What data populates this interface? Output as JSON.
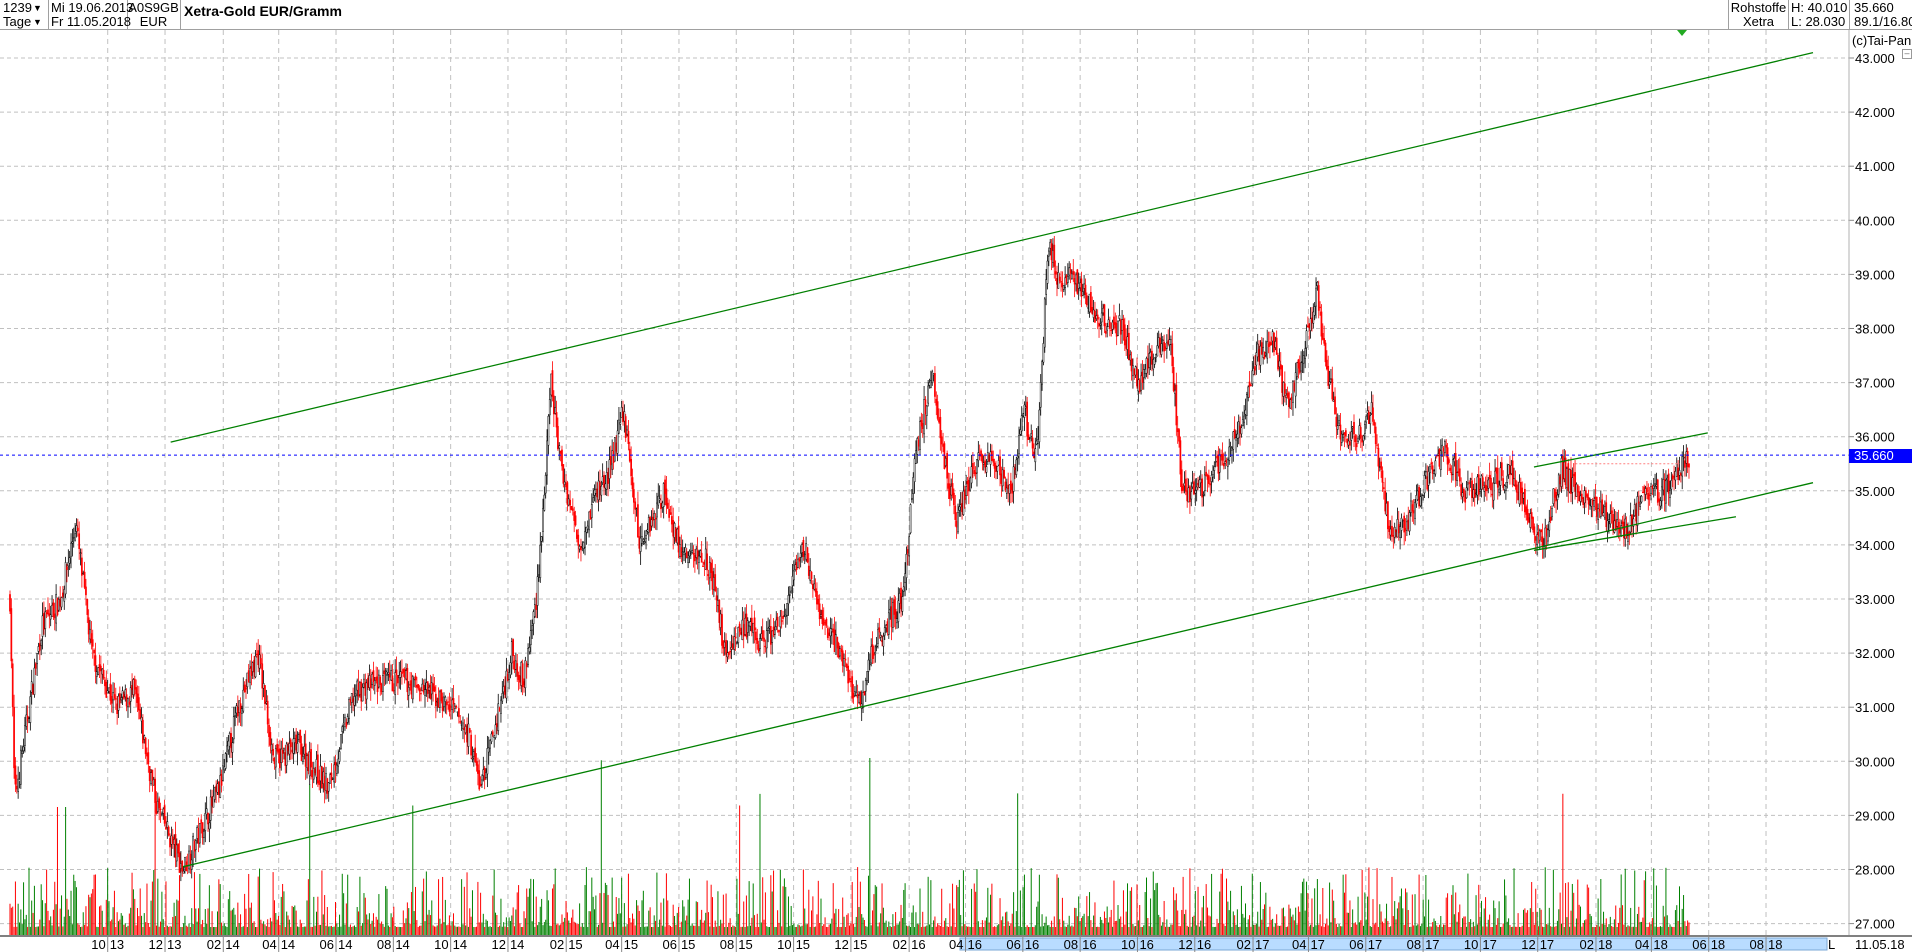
{
  "header": {
    "bars": "1239",
    "period": "Tage",
    "date_from": "Mi 19.06.2013",
    "date_to": "Fr 11.05.2018",
    "wkn": "A0S9GB",
    "currency": "EUR",
    "title": "Xetra-Gold EUR/Gramm",
    "group": "Rohstoffe",
    "exchange": "Xetra",
    "high": "H: 40.010",
    "low": "L: 28.030",
    "last": "35.660",
    "extra": "89.1/16.80",
    "copyright": "(c)Tai-Pan"
  },
  "axis": {
    "last_label": "35.660",
    "date_label": "11.05.18",
    "l_button": "L"
  },
  "colors": {
    "up": "#000000",
    "down": "#ff0000",
    "trend": "#008000",
    "grid": "#c0c0c0",
    "last": "#0000ff",
    "timeline": "#b9dcff"
  },
  "chart_data": {
    "type": "candlestick",
    "ylim": [
      26.6,
      43.4
    ],
    "yticks": [
      "27.000",
      "28.000",
      "29.000",
      "30.000",
      "31.000",
      "32.000",
      "33.000",
      "34.000",
      "35.000",
      "36.000",
      "37.000",
      "38.000",
      "39.000",
      "40.000",
      "41.000",
      "42.000",
      "43.000"
    ],
    "xticks": [
      "10.13",
      "12.13",
      "02.14",
      "04.14",
      "06.14",
      "08.14",
      "10.14",
      "12.14",
      "02.15",
      "04.15",
      "06.15",
      "08.15",
      "10.15",
      "12.15",
      "02.16",
      "04.16",
      "06.16",
      "08.16",
      "10.16",
      "12.16",
      "02.17",
      "04.17",
      "06.17",
      "08.17",
      "10.17",
      "12.17",
      "02.18",
      "04.18",
      "06.18",
      "08.18"
    ],
    "grid": true,
    "last_price": 35.66,
    "high": 40.01,
    "low": 28.03,
    "close_series": [
      [
        "2013-06-19",
        33.0
      ],
      [
        "2013-06-24",
        29.3
      ],
      [
        "2013-07-23",
        32.5
      ],
      [
        "2013-08-12",
        33.0
      ],
      [
        "2013-08-28",
        34.4
      ],
      [
        "2013-09-14",
        32.0
      ],
      [
        "2013-10-10",
        31.0
      ],
      [
        "2013-10-29",
        31.3
      ],
      [
        "2013-11-22",
        29.2
      ],
      [
        "2013-12-20",
        28.0
      ],
      [
        "2014-01-28",
        29.5
      ],
      [
        "2014-02-17",
        31.0
      ],
      [
        "2014-03-10",
        32.0
      ],
      [
        "2014-03-27",
        30.0
      ],
      [
        "2014-04-22",
        30.3
      ],
      [
        "2014-05-24",
        29.5
      ],
      [
        "2014-06-19",
        31.2
      ],
      [
        "2014-07-02",
        31.4
      ],
      [
        "2014-08-10",
        31.5
      ],
      [
        "2014-09-05",
        31.3
      ],
      [
        "2014-10-01",
        31.0
      ],
      [
        "2014-10-20",
        30.5
      ],
      [
        "2014-11-02",
        29.5
      ],
      [
        "2014-11-22",
        31.0
      ],
      [
        "2014-12-05",
        32.0
      ],
      [
        "2014-12-18",
        31.5
      ],
      [
        "2014-12-31",
        33.0
      ],
      [
        "2015-01-09",
        35.0
      ],
      [
        "2015-01-16",
        37.0
      ],
      [
        "2015-01-26",
        35.5
      ],
      [
        "2015-02-15",
        34.0
      ],
      [
        "2015-03-05",
        35.0
      ],
      [
        "2015-03-18",
        35.3
      ],
      [
        "2015-04-03",
        36.5
      ],
      [
        "2015-04-20",
        34.0
      ],
      [
        "2015-05-16",
        35.0
      ],
      [
        "2015-06-04",
        33.8
      ],
      [
        "2015-06-30",
        33.8
      ],
      [
        "2015-07-11",
        33.0
      ],
      [
        "2015-07-20",
        32.0
      ],
      [
        "2015-08-08",
        32.5
      ],
      [
        "2015-08-28",
        32.2
      ],
      [
        "2015-09-17",
        32.5
      ],
      [
        "2015-10-13",
        34.0
      ],
      [
        "2015-10-26",
        32.8
      ],
      [
        "2015-11-20",
        32.0
      ],
      [
        "2015-12-10",
        31.0
      ],
      [
        "2015-12-23",
        32.0
      ],
      [
        "2016-01-05",
        32.5
      ],
      [
        "2016-01-25",
        33.0
      ],
      [
        "2016-01-31",
        34.0
      ],
      [
        "2016-02-06",
        35.5
      ],
      [
        "2016-02-26",
        37.3
      ],
      [
        "2016-03-10",
        35.5
      ],
      [
        "2016-03-22",
        34.5
      ],
      [
        "2016-04-11",
        35.5
      ],
      [
        "2016-05-01",
        35.5
      ],
      [
        "2016-05-20",
        35.0
      ],
      [
        "2016-06-02",
        36.5
      ],
      [
        "2016-06-15",
        35.5
      ],
      [
        "2016-06-28",
        39.5
      ],
      [
        "2016-07-11",
        38.8
      ],
      [
        "2016-07-24",
        39.0
      ],
      [
        "2016-08-19",
        38.2
      ],
      [
        "2016-09-14",
        38.0
      ],
      [
        "2016-10-03",
        37.0
      ],
      [
        "2016-10-16",
        37.5
      ],
      [
        "2016-11-05",
        37.8
      ],
      [
        "2016-11-18",
        35.0
      ],
      [
        "2016-12-07",
        35.0
      ],
      [
        "2016-12-27",
        35.5
      ],
      [
        "2017-01-16",
        36.0
      ],
      [
        "2017-02-05",
        37.5
      ],
      [
        "2017-02-24",
        37.8
      ],
      [
        "2017-03-09",
        36.5
      ],
      [
        "2017-03-22",
        37.3
      ],
      [
        "2017-04-10",
        38.7
      ],
      [
        "2017-04-23",
        37.0
      ],
      [
        "2017-05-06",
        36.0
      ],
      [
        "2017-05-25",
        36.0
      ],
      [
        "2017-06-07",
        36.5
      ],
      [
        "2017-06-27",
        34.2
      ],
      [
        "2017-07-16",
        34.5
      ],
      [
        "2017-08-04",
        35.2
      ],
      [
        "2017-08-24",
        35.8
      ],
      [
        "2017-09-13",
        35.0
      ],
      [
        "2017-10-09",
        35.1
      ],
      [
        "2017-11-04",
        35.3
      ],
      [
        "2017-11-23",
        34.5
      ],
      [
        "2017-12-06",
        34.0
      ],
      [
        "2017-12-26",
        35.4
      ],
      [
        "2018-01-21",
        34.8
      ],
      [
        "2018-02-16",
        34.5
      ],
      [
        "2018-03-07",
        34.3
      ],
      [
        "2018-03-26",
        35.0
      ],
      [
        "2018-04-15",
        35.0
      ],
      [
        "2018-05-11",
        35.66
      ]
    ],
    "trendlines": [
      {
        "from": [
          "2013-12-07",
          35.9
        ],
        "to": [
          "2018-09-20",
          43.1
        ]
      },
      {
        "from": [
          "2013-12-20",
          28.05
        ],
        "to": [
          "2018-09-20",
          35.15
        ]
      },
      {
        "from": [
          "2017-11-27",
          35.44
        ],
        "to": [
          "2018-05-31",
          36.07
        ]
      },
      {
        "from": [
          "2017-11-27",
          33.9
        ],
        "to": [
          "2018-06-30",
          34.52
        ]
      }
    ],
    "resistance_line": {
      "from": "2018-01-10",
      "to": "2018-05-01",
      "value": 35.5
    }
  }
}
